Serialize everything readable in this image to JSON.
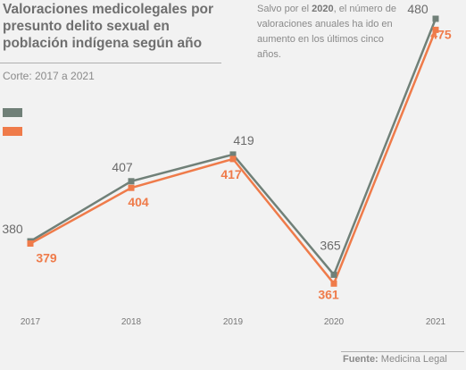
{
  "title": "Valoraciones medicolegales por presunto delito sexual en población indígena según año",
  "subtitle": "Corte: 2017 a 2021",
  "note": {
    "before": "Salvo por el ",
    "bold": "2020",
    "after": ", el número de valoraciones anuales ha ido en aumento en los últimos cinco años."
  },
  "source": {
    "key": "Fuente:",
    "value": "Medicina Legal"
  },
  "colors": {
    "series_a": "#708078",
    "series_b": "#ef7b4a",
    "background": "#f2f2f2"
  },
  "chart_data": {
    "type": "line",
    "categories": [
      "2017",
      "2018",
      "2019",
      "2020",
      "2021"
    ],
    "series": [
      {
        "name": "",
        "values": [
          380,
          407,
          419,
          365,
          480
        ]
      },
      {
        "name": "",
        "values": [
          379,
          404,
          417,
          361,
          475
        ]
      }
    ],
    "legend": "top-left",
    "grid": false
  }
}
